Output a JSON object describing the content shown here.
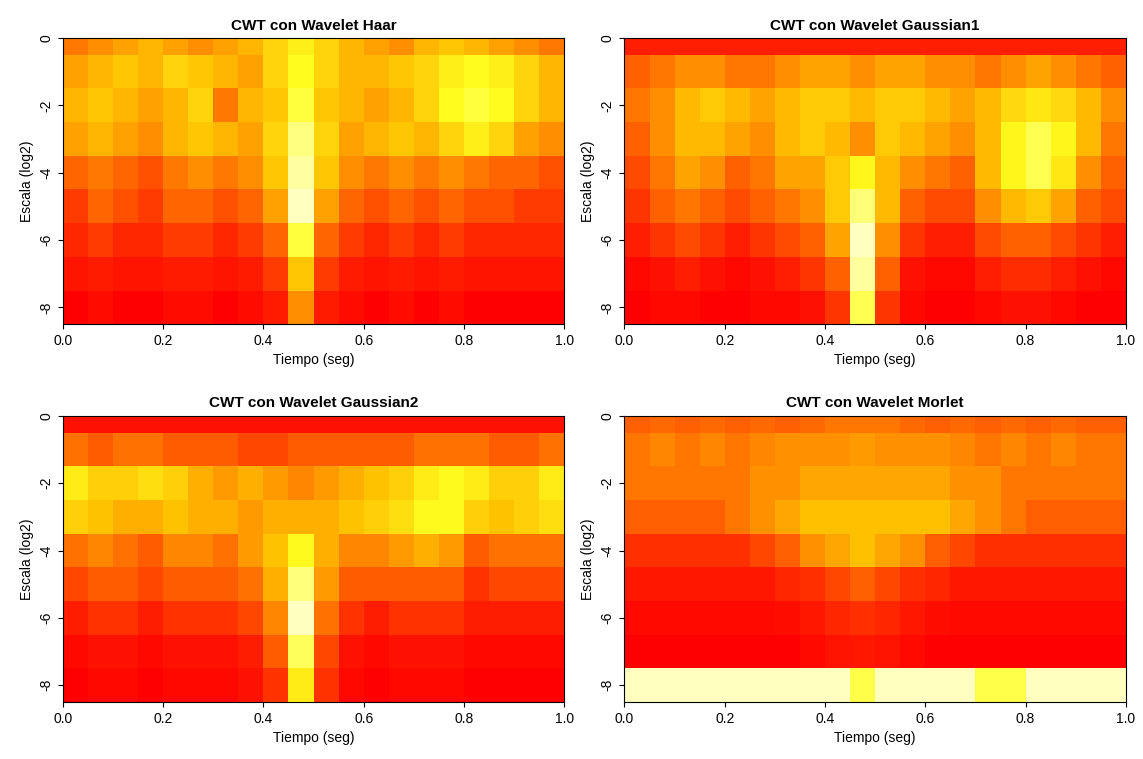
{
  "chart_data": [
    {
      "type": "heatmap",
      "title": "CWT con Wavelet Haar",
      "x_label": "Tiempo (seg)",
      "y_label": "Escala (log2)",
      "xlim": [
        0.0,
        1.0
      ],
      "ylim": [
        -8.5,
        0
      ],
      "xticks": [
        0.0,
        0.2,
        0.4,
        0.6,
        0.8,
        1.0
      ],
      "yticks": [
        0,
        -2,
        -4,
        -6,
        -8
      ],
      "x": [
        0.025,
        0.075,
        0.125,
        0.175,
        0.225,
        0.275,
        0.325,
        0.375,
        0.425,
        0.475,
        0.525,
        0.575,
        0.625,
        0.675,
        0.725,
        0.775,
        0.825,
        0.875,
        0.925,
        0.975
      ],
      "y": [
        0,
        -1,
        -2,
        -3,
        -4,
        -5,
        -6,
        -7,
        -8
      ],
      "cells": [
        [
          0.35,
          0.4,
          0.45,
          0.5,
          0.45,
          0.4,
          0.45,
          0.5,
          0.6,
          0.7,
          0.6,
          0.5,
          0.45,
          0.4,
          0.5,
          0.55,
          0.5,
          0.45,
          0.4,
          0.35
        ],
        [
          0.45,
          0.5,
          0.55,
          0.5,
          0.6,
          0.55,
          0.5,
          0.45,
          0.6,
          0.75,
          0.6,
          0.5,
          0.5,
          0.55,
          0.6,
          0.7,
          0.75,
          0.7,
          0.6,
          0.5
        ],
        [
          0.5,
          0.55,
          0.5,
          0.45,
          0.5,
          0.6,
          0.35,
          0.5,
          0.55,
          0.8,
          0.55,
          0.5,
          0.45,
          0.5,
          0.6,
          0.75,
          0.8,
          0.75,
          0.6,
          0.5
        ],
        [
          0.45,
          0.5,
          0.45,
          0.4,
          0.5,
          0.55,
          0.5,
          0.45,
          0.6,
          0.9,
          0.6,
          0.45,
          0.5,
          0.55,
          0.5,
          0.6,
          0.7,
          0.6,
          0.45,
          0.4
        ],
        [
          0.3,
          0.35,
          0.3,
          0.25,
          0.35,
          0.4,
          0.35,
          0.4,
          0.55,
          0.95,
          0.55,
          0.4,
          0.35,
          0.4,
          0.35,
          0.4,
          0.35,
          0.3,
          0.3,
          0.25
        ],
        [
          0.2,
          0.3,
          0.25,
          0.2,
          0.3,
          0.3,
          0.25,
          0.3,
          0.45,
          1.0,
          0.45,
          0.3,
          0.25,
          0.3,
          0.25,
          0.3,
          0.25,
          0.25,
          0.2,
          0.2
        ],
        [
          0.15,
          0.2,
          0.15,
          0.15,
          0.2,
          0.2,
          0.15,
          0.2,
          0.3,
          0.8,
          0.3,
          0.2,
          0.15,
          0.2,
          0.15,
          0.2,
          0.15,
          0.15,
          0.15,
          0.15
        ],
        [
          0.1,
          0.12,
          0.1,
          0.1,
          0.12,
          0.12,
          0.1,
          0.12,
          0.2,
          0.55,
          0.2,
          0.12,
          0.1,
          0.12,
          0.1,
          0.12,
          0.1,
          0.1,
          0.1,
          0.1
        ],
        [
          0.05,
          0.08,
          0.05,
          0.05,
          0.08,
          0.08,
          0.05,
          0.08,
          0.12,
          0.4,
          0.12,
          0.08,
          0.05,
          0.08,
          0.05,
          0.08,
          0.05,
          0.05,
          0.05,
          0.05
        ]
      ]
    },
    {
      "type": "heatmap",
      "title": "CWT con Wavelet Gaussian1",
      "x_label": "Tiempo (seg)",
      "y_label": "Escala (log2)",
      "xlim": [
        0.0,
        1.0
      ],
      "ylim": [
        -8.5,
        0
      ],
      "xticks": [
        0.0,
        0.2,
        0.4,
        0.6,
        0.8,
        1.0
      ],
      "yticks": [
        0,
        -2,
        -4,
        -6,
        -8
      ],
      "x": [
        0.025,
        0.075,
        0.125,
        0.175,
        0.225,
        0.275,
        0.325,
        0.375,
        0.425,
        0.475,
        0.525,
        0.575,
        0.625,
        0.675,
        0.725,
        0.775,
        0.825,
        0.875,
        0.925,
        0.975
      ],
      "y": [
        0,
        -1,
        -2,
        -3,
        -4,
        -5,
        -6,
        -7,
        -8
      ],
      "cells": [
        [
          0.15,
          0.15,
          0.15,
          0.15,
          0.15,
          0.15,
          0.15,
          0.15,
          0.15,
          0.15,
          0.15,
          0.15,
          0.15,
          0.15,
          0.15,
          0.15,
          0.15,
          0.15,
          0.15,
          0.15
        ],
        [
          0.3,
          0.35,
          0.4,
          0.4,
          0.35,
          0.35,
          0.4,
          0.45,
          0.45,
          0.4,
          0.45,
          0.45,
          0.4,
          0.4,
          0.35,
          0.4,
          0.45,
          0.4,
          0.35,
          0.3
        ],
        [
          0.35,
          0.4,
          0.5,
          0.55,
          0.5,
          0.45,
          0.5,
          0.55,
          0.55,
          0.5,
          0.55,
          0.55,
          0.5,
          0.45,
          0.5,
          0.6,
          0.65,
          0.6,
          0.5,
          0.4
        ],
        [
          0.3,
          0.4,
          0.5,
          0.5,
          0.45,
          0.4,
          0.5,
          0.55,
          0.5,
          0.4,
          0.55,
          0.5,
          0.45,
          0.4,
          0.5,
          0.7,
          0.8,
          0.7,
          0.5,
          0.35
        ],
        [
          0.25,
          0.35,
          0.45,
          0.4,
          0.3,
          0.35,
          0.45,
          0.45,
          0.55,
          0.7,
          0.5,
          0.4,
          0.35,
          0.3,
          0.5,
          0.7,
          0.8,
          0.65,
          0.4,
          0.3
        ],
        [
          0.2,
          0.3,
          0.35,
          0.3,
          0.25,
          0.3,
          0.35,
          0.4,
          0.55,
          0.85,
          0.5,
          0.3,
          0.25,
          0.25,
          0.4,
          0.5,
          0.55,
          0.45,
          0.3,
          0.25
        ],
        [
          0.15,
          0.2,
          0.25,
          0.2,
          0.15,
          0.2,
          0.25,
          0.3,
          0.45,
          0.95,
          0.4,
          0.2,
          0.15,
          0.15,
          0.25,
          0.3,
          0.3,
          0.25,
          0.2,
          0.15
        ],
        [
          0.1,
          0.12,
          0.15,
          0.12,
          0.1,
          0.12,
          0.15,
          0.2,
          0.3,
          0.9,
          0.3,
          0.12,
          0.1,
          0.1,
          0.15,
          0.18,
          0.18,
          0.15,
          0.12,
          0.1
        ],
        [
          0.08,
          0.1,
          0.1,
          0.08,
          0.08,
          0.1,
          0.1,
          0.12,
          0.2,
          0.8,
          0.2,
          0.1,
          0.08,
          0.08,
          0.1,
          0.12,
          0.12,
          0.1,
          0.08,
          0.08
        ]
      ]
    },
    {
      "type": "heatmap",
      "title": "CWT con Wavelet Gaussian2",
      "x_label": "Tiempo (seg)",
      "y_label": "Escala (log2)",
      "xlim": [
        0.0,
        1.0
      ],
      "ylim": [
        -8.5,
        0
      ],
      "xticks": [
        0.0,
        0.2,
        0.4,
        0.6,
        0.8,
        1.0
      ],
      "yticks": [
        0,
        -2,
        -4,
        -6,
        -8
      ],
      "x": [
        0.025,
        0.075,
        0.125,
        0.175,
        0.225,
        0.275,
        0.325,
        0.375,
        0.425,
        0.475,
        0.525,
        0.575,
        0.625,
        0.675,
        0.725,
        0.775,
        0.825,
        0.875,
        0.925,
        0.975
      ],
      "y": [
        0,
        -1,
        -2,
        -3,
        -4,
        -5,
        -6,
        -7,
        -8
      ],
      "cells": [
        [
          0.12,
          0.12,
          0.12,
          0.12,
          0.12,
          0.12,
          0.12,
          0.12,
          0.12,
          0.12,
          0.12,
          0.12,
          0.12,
          0.12,
          0.12,
          0.12,
          0.12,
          0.12,
          0.12,
          0.12
        ],
        [
          0.35,
          0.3,
          0.35,
          0.35,
          0.3,
          0.3,
          0.3,
          0.25,
          0.25,
          0.3,
          0.3,
          0.3,
          0.3,
          0.3,
          0.35,
          0.35,
          0.35,
          0.3,
          0.3,
          0.35
        ],
        [
          0.7,
          0.6,
          0.6,
          0.65,
          0.6,
          0.5,
          0.45,
          0.5,
          0.45,
          0.4,
          0.45,
          0.5,
          0.55,
          0.6,
          0.7,
          0.75,
          0.7,
          0.6,
          0.6,
          0.7
        ],
        [
          0.6,
          0.55,
          0.5,
          0.5,
          0.55,
          0.5,
          0.5,
          0.45,
          0.5,
          0.5,
          0.5,
          0.55,
          0.6,
          0.65,
          0.75,
          0.75,
          0.6,
          0.55,
          0.6,
          0.65
        ],
        [
          0.35,
          0.4,
          0.35,
          0.3,
          0.4,
          0.4,
          0.35,
          0.45,
          0.55,
          0.75,
          0.5,
          0.4,
          0.4,
          0.45,
          0.5,
          0.45,
          0.3,
          0.35,
          0.35,
          0.35
        ],
        [
          0.25,
          0.3,
          0.3,
          0.25,
          0.3,
          0.3,
          0.3,
          0.35,
          0.5,
          0.9,
          0.45,
          0.3,
          0.3,
          0.3,
          0.3,
          0.3,
          0.2,
          0.25,
          0.25,
          0.25
        ],
        [
          0.15,
          0.2,
          0.2,
          0.15,
          0.2,
          0.2,
          0.2,
          0.25,
          0.4,
          1.0,
          0.35,
          0.2,
          0.15,
          0.2,
          0.2,
          0.2,
          0.15,
          0.15,
          0.15,
          0.15
        ],
        [
          0.1,
          0.12,
          0.12,
          0.1,
          0.12,
          0.12,
          0.12,
          0.15,
          0.3,
          0.85,
          0.25,
          0.12,
          0.1,
          0.12,
          0.12,
          0.12,
          0.1,
          0.1,
          0.1,
          0.1
        ],
        [
          0.08,
          0.1,
          0.1,
          0.08,
          0.1,
          0.1,
          0.1,
          0.12,
          0.2,
          0.7,
          0.2,
          0.1,
          0.08,
          0.1,
          0.1,
          0.1,
          0.08,
          0.08,
          0.08,
          0.08
        ]
      ]
    },
    {
      "type": "heatmap",
      "title": "CWT con Wavelet Morlet",
      "x_label": "Tiempo (seg)",
      "y_label": "Escala (log2)",
      "xlim": [
        0.0,
        1.0
      ],
      "ylim": [
        -8.5,
        0
      ],
      "xticks": [
        0.0,
        0.2,
        0.4,
        0.6,
        0.8,
        1.0
      ],
      "yticks": [
        0,
        -2,
        -4,
        -6,
        -8
      ],
      "x": [
        0.025,
        0.075,
        0.125,
        0.175,
        0.225,
        0.275,
        0.325,
        0.375,
        0.425,
        0.475,
        0.525,
        0.575,
        0.625,
        0.675,
        0.725,
        0.775,
        0.825,
        0.875,
        0.925,
        0.975
      ],
      "y": [
        0,
        -1,
        -2,
        -3,
        -4,
        -5,
        -6,
        -7,
        -8
      ],
      "cells": [
        [
          0.3,
          0.32,
          0.3,
          0.32,
          0.3,
          0.32,
          0.3,
          0.32,
          0.35,
          0.35,
          0.35,
          0.32,
          0.3,
          0.32,
          0.3,
          0.32,
          0.3,
          0.32,
          0.3,
          0.3
        ],
        [
          0.35,
          0.38,
          0.35,
          0.38,
          0.35,
          0.38,
          0.4,
          0.4,
          0.4,
          0.42,
          0.4,
          0.4,
          0.4,
          0.38,
          0.35,
          0.38,
          0.35,
          0.38,
          0.35,
          0.35
        ],
        [
          0.35,
          0.35,
          0.35,
          0.35,
          0.35,
          0.4,
          0.4,
          0.45,
          0.45,
          0.45,
          0.45,
          0.45,
          0.45,
          0.4,
          0.4,
          0.35,
          0.35,
          0.35,
          0.35,
          0.35
        ],
        [
          0.3,
          0.3,
          0.3,
          0.3,
          0.35,
          0.4,
          0.45,
          0.5,
          0.5,
          0.5,
          0.5,
          0.5,
          0.5,
          0.45,
          0.4,
          0.35,
          0.3,
          0.3,
          0.3,
          0.3
        ],
        [
          0.2,
          0.2,
          0.2,
          0.2,
          0.2,
          0.25,
          0.3,
          0.4,
          0.45,
          0.5,
          0.45,
          0.4,
          0.3,
          0.25,
          0.2,
          0.2,
          0.2,
          0.2,
          0.2,
          0.2
        ],
        [
          0.15,
          0.15,
          0.15,
          0.15,
          0.15,
          0.15,
          0.18,
          0.2,
          0.25,
          0.3,
          0.25,
          0.2,
          0.18,
          0.15,
          0.15,
          0.15,
          0.15,
          0.15,
          0.15,
          0.15
        ],
        [
          0.12,
          0.12,
          0.12,
          0.12,
          0.12,
          0.12,
          0.13,
          0.15,
          0.18,
          0.2,
          0.18,
          0.15,
          0.13,
          0.12,
          0.12,
          0.12,
          0.12,
          0.12,
          0.12,
          0.12
        ],
        [
          0.1,
          0.1,
          0.1,
          0.1,
          0.1,
          0.1,
          0.1,
          0.12,
          0.14,
          0.15,
          0.14,
          0.12,
          0.1,
          0.1,
          0.1,
          0.1,
          0.1,
          0.1,
          0.1,
          0.1
        ],
        [
          0.9,
          0.9,
          0.9,
          0.9,
          0.9,
          0.9,
          0.9,
          0.9,
          0.9,
          0.75,
          0.9,
          0.9,
          0.9,
          0.9,
          0.75,
          0.75,
          0.9,
          0.9,
          0.9,
          0.9
        ]
      ]
    }
  ]
}
